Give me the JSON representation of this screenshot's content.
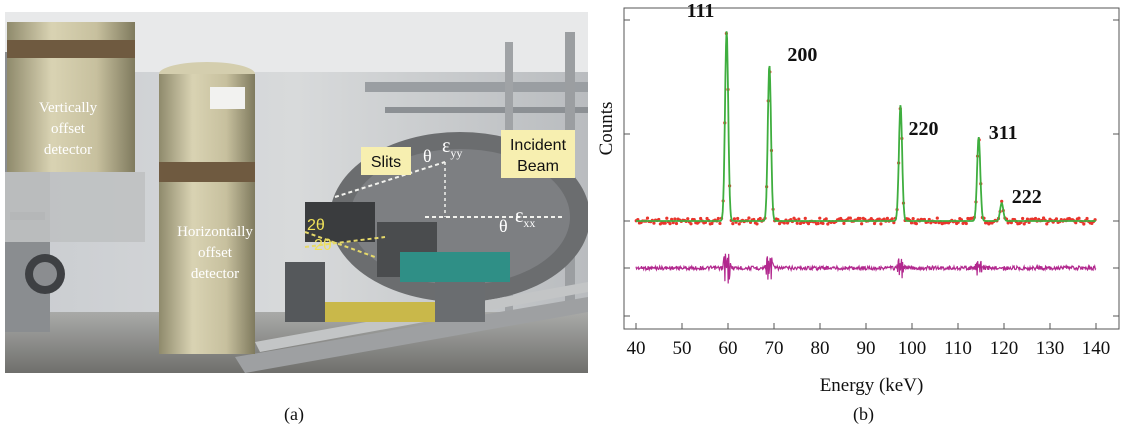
{
  "panel_a": {
    "caption": "(a)",
    "labels": {
      "vertical_detector": [
        "Vertically",
        "offset",
        "detector"
      ],
      "horizontal_detector": [
        "Horizontally",
        "offset",
        "detector"
      ],
      "slits": "Slits",
      "incident_beam": [
        "Incident",
        "Beam"
      ],
      "theta": "θ",
      "eps_yy_base": "ε",
      "eps_yy_sub": "yy",
      "eps_xx_base": "ε",
      "eps_xx_sub": "xx",
      "two_theta_1": "2θ",
      "two_theta_2": "2θ"
    }
  },
  "panel_b": {
    "caption": "(b)"
  },
  "colors": {
    "observed": "#e8352c",
    "fit": "#3fae3f",
    "difference": "#b2288e",
    "label_box": "#f7efb0"
  },
  "chart_data": {
    "type": "line",
    "xlabel": "Energy (keV)",
    "ylabel": "Counts",
    "xlim": [
      40,
      140
    ],
    "xticks": [
      40,
      50,
      60,
      70,
      80,
      90,
      100,
      110,
      120,
      130,
      140
    ],
    "y_tick_labels": "none",
    "peaks": [
      {
        "label": "111",
        "energy": 59.7,
        "height": 0.95
      },
      {
        "label": "200",
        "energy": 69.0,
        "height": 0.78
      },
      {
        "label": "220",
        "energy": 97.5,
        "height": 0.58
      },
      {
        "label": "311",
        "energy": 114.5,
        "height": 0.42
      },
      {
        "label": "222",
        "energy": 119.5,
        "height": 0.09
      }
    ],
    "series": [
      {
        "name": "",
        "role": "observed",
        "style": "points"
      },
      {
        "name": "",
        "role": "calculated",
        "style": "line"
      },
      {
        "name": "",
        "role": "difference",
        "style": "line"
      }
    ]
  }
}
